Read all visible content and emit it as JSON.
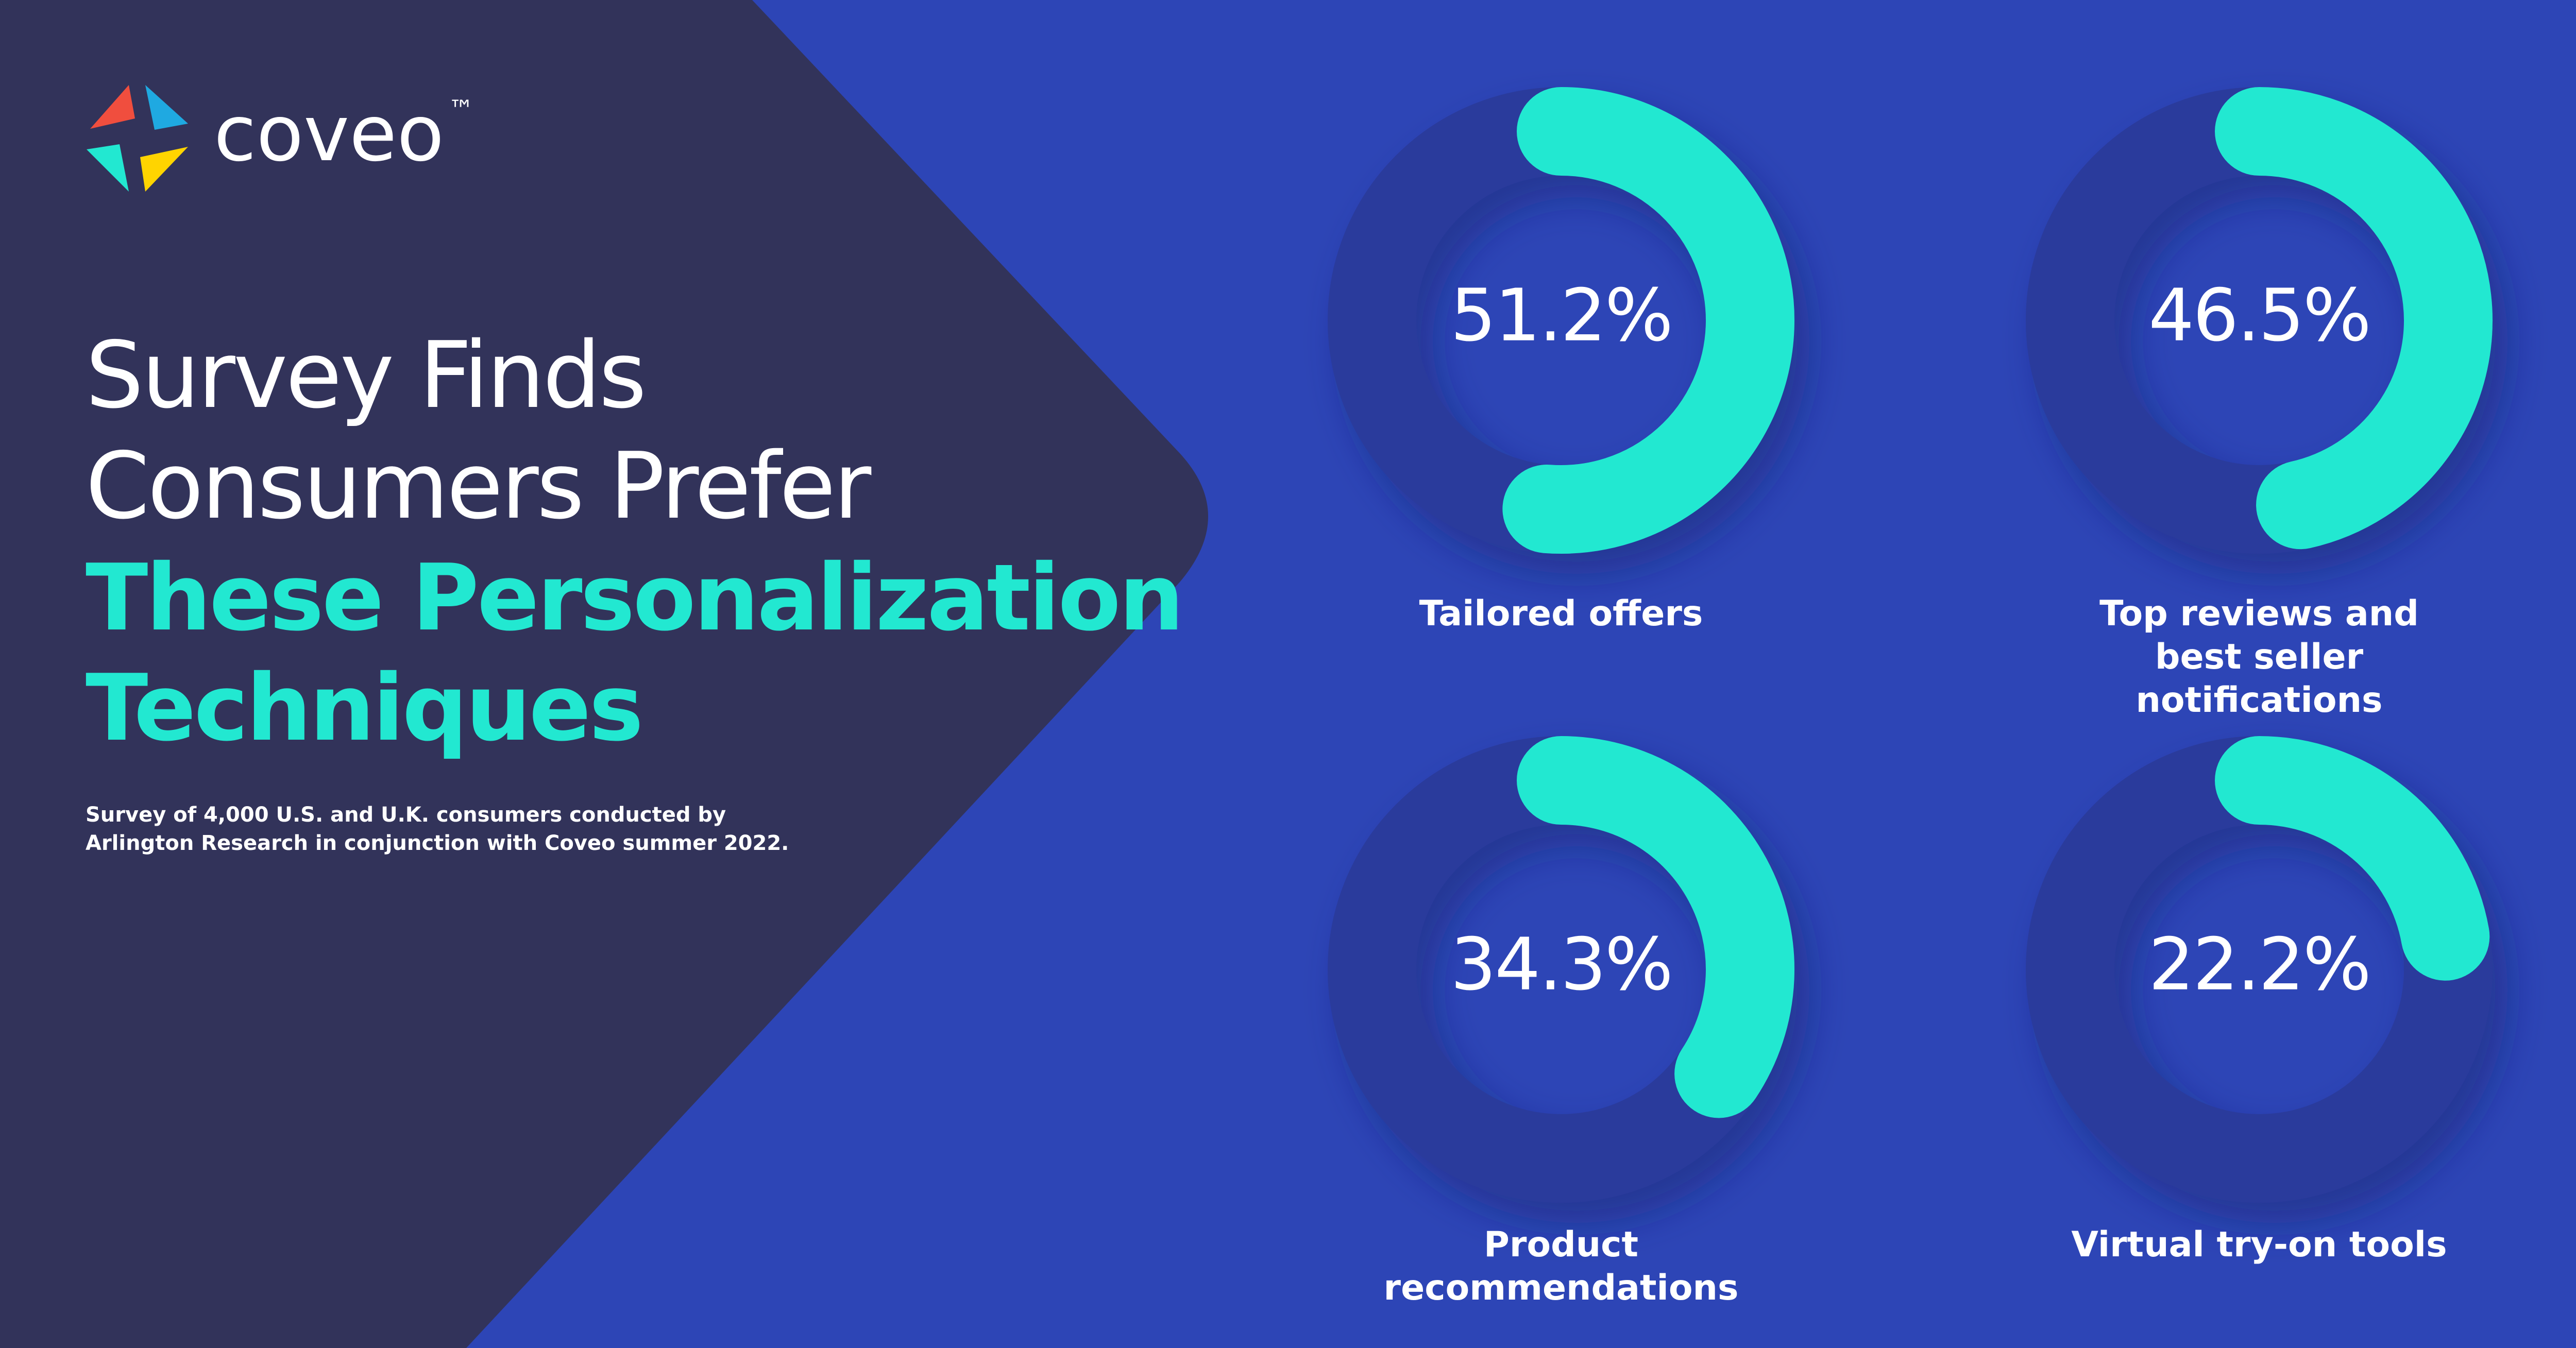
{
  "brand": {
    "name": "coveo",
    "mark": "™"
  },
  "header": {
    "title_lines": [
      "Survey Finds",
      "Consumers Prefer"
    ],
    "highlight_lines": [
      "These Personalization",
      "Techniques"
    ],
    "note_lines": [
      "Survey of 4,000 U.S. and U.K. consumers conducted by",
      "Arlington Research in conjunction with Coveo summer 2022."
    ]
  },
  "chart_data": [
    {
      "type": "donut",
      "title": "Tailored offers",
      "values": [
        51.2
      ],
      "value_labels": [
        "51.2%"
      ],
      "ylim": [
        0,
        100
      ],
      "color": "#22e8d1",
      "track_color": "#2a3a9c"
    },
    {
      "type": "donut",
      "title": "Top reviews and best seller notifications",
      "values": [
        46.5
      ],
      "value_labels": [
        "46.5%"
      ],
      "ylim": [
        0,
        100
      ],
      "color": "#22e8d1",
      "track_color": "#2a3a9c"
    },
    {
      "type": "donut",
      "title": "Product recommendations",
      "values": [
        34.3
      ],
      "value_labels": [
        "34.3%"
      ],
      "ylim": [
        0,
        100
      ],
      "color": "#22e8d1",
      "track_color": "#2a3a9c"
    },
    {
      "type": "donut",
      "title": "Virtual try-on tools",
      "values": [
        22.2
      ],
      "value_labels": [
        "22.2%"
      ],
      "ylim": [
        0,
        100
      ],
      "color": "#22e8d1",
      "track_color": "#2a3a9c"
    }
  ]
}
